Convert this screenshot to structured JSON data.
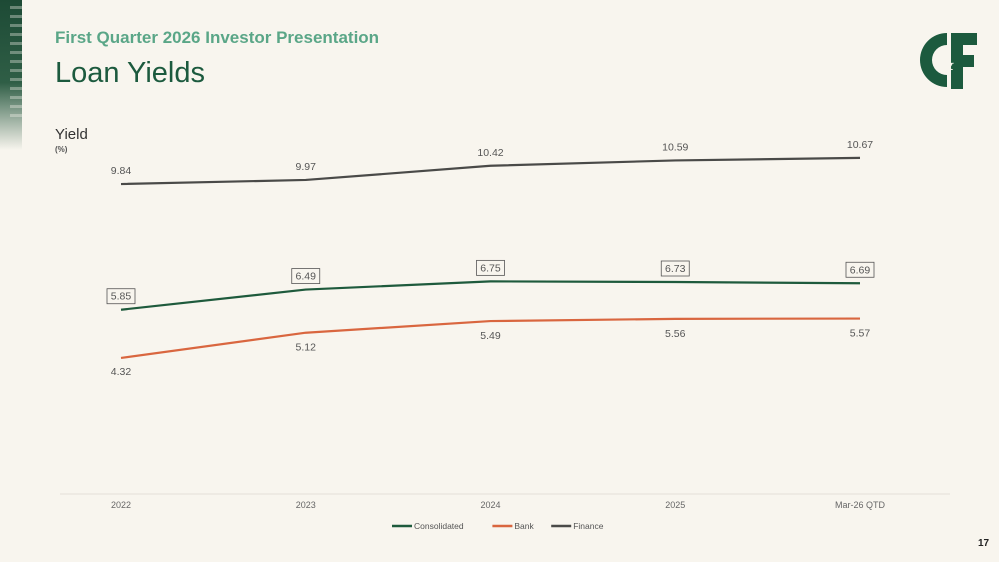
{
  "header": {
    "subtitle": "First Quarter 2026 Investor Presentation",
    "title": "Loan Yields",
    "logo_icon": "cf-monogram-logo",
    "brand_color": "#1c5a3e",
    "accent_color": "#5aa687"
  },
  "axis": {
    "y_title": "Yield",
    "y_unit": "(%)"
  },
  "chart_data": {
    "type": "line",
    "categories": [
      "2022",
      "2023",
      "2024",
      "2025",
      "Mar-26 QTD"
    ],
    "series": [
      {
        "name": "Consolidated",
        "values": [
          5.85,
          6.49,
          6.75,
          6.73,
          6.69
        ],
        "color": "#1e5a3c",
        "boxed_labels": true
      },
      {
        "name": "Bank",
        "values": [
          4.32,
          5.12,
          5.49,
          5.56,
          5.57
        ],
        "color": "#d9663f",
        "boxed_labels": false
      },
      {
        "name": "Finance",
        "values": [
          9.84,
          9.97,
          10.42,
          10.59,
          10.67
        ],
        "color": "#4a4a48",
        "boxed_labels": false
      }
    ],
    "title": "",
    "xlabel": "",
    "ylabel": "Yield",
    "ylim": [
      0,
      11.5
    ],
    "grid": false,
    "legend_position": "bottom"
  },
  "footer": {
    "page_number": "17"
  }
}
